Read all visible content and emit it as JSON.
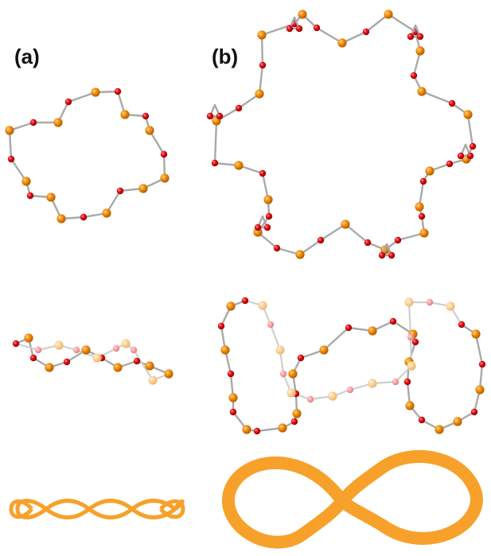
{
  "figure": {
    "label_a": "(a)",
    "label_b": "(b)"
  },
  "colors": {
    "metal_atom": "#f08c0a",
    "oxygen_atom": "#e00c12",
    "bond": "#a9a9a9",
    "ribbon": "#f7a12a"
  }
}
